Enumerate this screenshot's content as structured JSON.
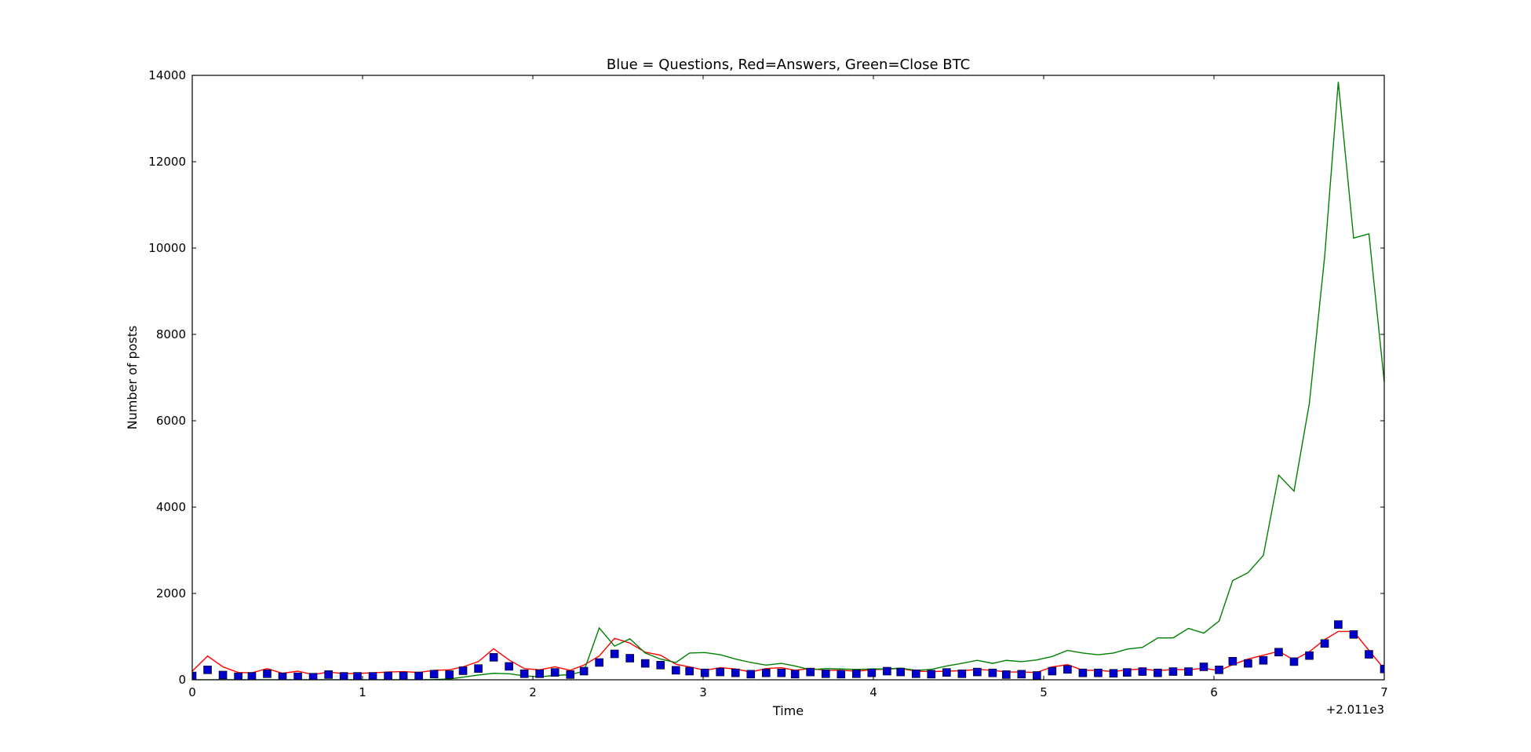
{
  "chart_data": {
    "type": "line",
    "title": "Blue = Questions, Red=Answers, Green=Close BTC",
    "xlabel": "Time",
    "ylabel": "Number of posts",
    "x_offset_label": "+2.011e3",
    "xlim": [
      0,
      7
    ],
    "xticks": [
      0,
      1,
      2,
      3,
      4,
      5,
      6,
      7
    ],
    "ylim": [
      0,
      14000
    ],
    "yticks": [
      0,
      2000,
      4000,
      6000,
      8000,
      10000,
      12000,
      14000
    ],
    "x": [
      0,
      0.09,
      0.18,
      0.27,
      0.35,
      0.44,
      0.53,
      0.62,
      0.71,
      0.8,
      0.89,
      0.97,
      1.06,
      1.15,
      1.24,
      1.33,
      1.42,
      1.51,
      1.59,
      1.68,
      1.77,
      1.86,
      1.95,
      2.04,
      2.13,
      2.22,
      2.3,
      2.39,
      2.48,
      2.57,
      2.66,
      2.75,
      2.84,
      2.92,
      3.01,
      3.1,
      3.19,
      3.28,
      3.37,
      3.46,
      3.54,
      3.63,
      3.72,
      3.81,
      3.9,
      3.99,
      4.08,
      4.16,
      4.25,
      4.34,
      4.43,
      4.52,
      4.61,
      4.7,
      4.78,
      4.87,
      4.96,
      5.05,
      5.14,
      5.23,
      5.32,
      5.41,
      5.49,
      5.58,
      5.67,
      5.76,
      5.85,
      5.94,
      6.03,
      6.11,
      6.2,
      6.29,
      6.38,
      6.47,
      6.56,
      6.65,
      6.73,
      6.82,
      6.91,
      7
    ],
    "series": [
      {
        "color": "#0000cc",
        "marker": "square",
        "values": [
          90,
          230,
          110,
          70,
          80,
          140,
          70,
          70,
          60,
          120,
          80,
          80,
          80,
          90,
          90,
          90,
          130,
          120,
          210,
          260,
          520,
          310,
          140,
          140,
          170,
          120,
          200,
          400,
          600,
          500,
          380,
          340,
          220,
          200,
          160,
          180,
          160,
          130,
          160,
          160,
          130,
          180,
          140,
          130,
          140,
          160,
          200,
          180,
          140,
          130,
          170,
          140,
          180,
          160,
          120,
          130,
          100,
          200,
          240,
          160,
          160,
          150,
          170,
          190,
          160,
          190,
          190,
          300,
          230,
          430,
          380,
          450,
          640,
          420,
          560,
          840,
          1280,
          1050,
          590,
          250
        ]
      },
      {
        "color": "#ff0000",
        "marker": "none",
        "values": [
          200,
          550,
          300,
          170,
          160,
          260,
          150,
          200,
          120,
          180,
          140,
          150,
          160,
          180,
          190,
          170,
          220,
          230,
          300,
          420,
          720,
          460,
          260,
          230,
          300,
          220,
          340,
          550,
          960,
          850,
          640,
          570,
          360,
          300,
          220,
          280,
          250,
          180,
          260,
          280,
          220,
          260,
          220,
          220,
          200,
          230,
          250,
          260,
          200,
          190,
          200,
          210,
          240,
          220,
          180,
          180,
          170,
          300,
          350,
          220,
          220,
          190,
          230,
          250,
          210,
          240,
          230,
          270,
          210,
          350,
          480,
          570,
          660,
          460,
          650,
          930,
          1120,
          1120,
          680,
          250
        ]
      },
      {
        "color": "#008000",
        "marker": "none",
        "values": [
          0,
          0,
          0,
          0,
          0,
          0,
          0,
          0,
          0,
          0,
          0,
          0,
          0,
          0,
          0,
          0,
          5,
          20,
          60,
          110,
          150,
          140,
          90,
          70,
          100,
          120,
          200,
          1200,
          780,
          950,
          620,
          480,
          400,
          620,
          630,
          580,
          480,
          400,
          340,
          380,
          320,
          230,
          260,
          250,
          240,
          250,
          250,
          270,
          220,
          240,
          320,
          380,
          450,
          380,
          450,
          420,
          460,
          540,
          680,
          620,
          580,
          620,
          710,
          750,
          970,
          970,
          1190,
          1080,
          1360,
          2300,
          2480,
          2880,
          4740,
          4370,
          6400,
          9800,
          13850,
          10230,
          10330,
          6900
        ]
      }
    ]
  }
}
